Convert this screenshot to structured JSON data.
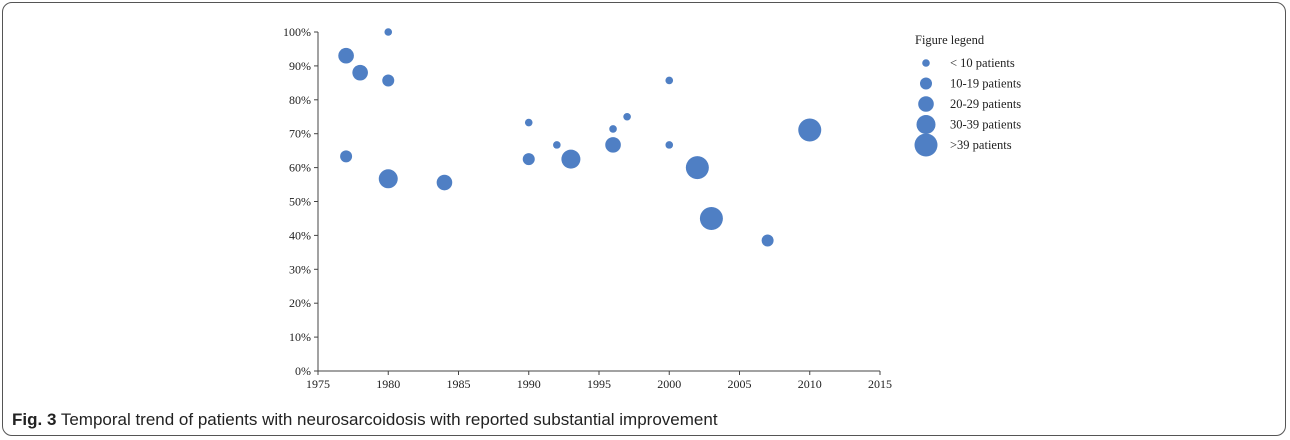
{
  "caption": {
    "label": "Fig. 3",
    "text": " Temporal trend of patients with neurosarcoidosis with reported substantial improvement"
  },
  "chart_data": {
    "type": "scatter",
    "title": "",
    "xlabel": "",
    "ylabel": "",
    "xlim": [
      1975,
      2015
    ],
    "ylim": [
      0,
      100
    ],
    "x_ticks": [
      "1975",
      "1980",
      "1985",
      "1990",
      "1995",
      "2000",
      "2005",
      "2010",
      "2015"
    ],
    "y_ticks": [
      "0%",
      "10%",
      "20%",
      "30%",
      "40%",
      "50%",
      "60%",
      "70%",
      "80%",
      "90%",
      "100%"
    ],
    "marker_color": "#4f7fc4",
    "legend": {
      "title": "Figure legend",
      "position": "right",
      "entries": [
        {
          "label": "< 10 patients",
          "size_class": 1
        },
        {
          "label": "10-19 patients",
          "size_class": 2
        },
        {
          "label": "20-29 patients",
          "size_class": 3
        },
        {
          "label": "30-39 patients",
          "size_class": 4
        },
        {
          "label": ">39 patients",
          "size_class": 5
        }
      ]
    },
    "points": [
      {
        "x": 1977,
        "y": 93,
        "size_class": 3
      },
      {
        "x": 1978,
        "y": 88,
        "size_class": 3
      },
      {
        "x": 1980,
        "y": 100,
        "size_class": 1
      },
      {
        "x": 1980,
        "y": 85.7,
        "size_class": 2
      },
      {
        "x": 1977,
        "y": 63.3,
        "size_class": 2
      },
      {
        "x": 1980,
        "y": 56.7,
        "size_class": 4
      },
      {
        "x": 1984,
        "y": 55.6,
        "size_class": 3
      },
      {
        "x": 1990,
        "y": 73.3,
        "size_class": 1
      },
      {
        "x": 1990,
        "y": 62.5,
        "size_class": 2
      },
      {
        "x": 1992,
        "y": 66.7,
        "size_class": 1
      },
      {
        "x": 1993,
        "y": 62.5,
        "size_class": 4
      },
      {
        "x": 1996,
        "y": 71.4,
        "size_class": 1
      },
      {
        "x": 1996,
        "y": 66.7,
        "size_class": 3
      },
      {
        "x": 1997,
        "y": 75,
        "size_class": 1
      },
      {
        "x": 2000,
        "y": 85.7,
        "size_class": 1
      },
      {
        "x": 2000,
        "y": 66.7,
        "size_class": 1
      },
      {
        "x": 2002,
        "y": 60,
        "size_class": 5
      },
      {
        "x": 2003,
        "y": 45,
        "size_class": 5
      },
      {
        "x": 2007,
        "y": 38.5,
        "size_class": 2
      },
      {
        "x": 2010,
        "y": 71.1,
        "size_class": 5
      }
    ]
  }
}
